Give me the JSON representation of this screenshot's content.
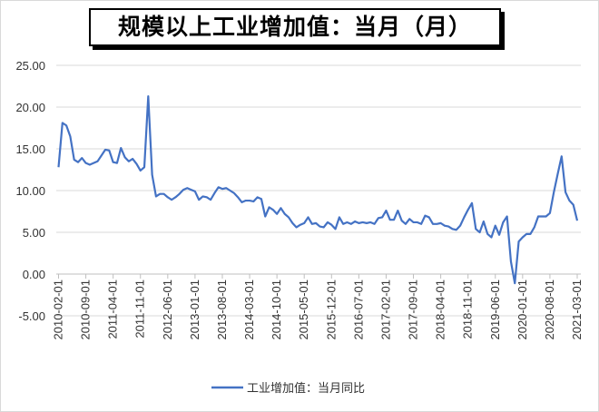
{
  "chart_data": {
    "type": "line",
    "title": "规模以上工业增加值：当月（月）",
    "xlabel": "",
    "ylabel": "",
    "ylim": [
      -5,
      25
    ],
    "y_ticks": [
      "25.00",
      "20.00",
      "15.00",
      "10.00",
      "5.00",
      "0.00",
      "-5.00"
    ],
    "x_ticks": [
      "2010-02-01",
      "2010-09-01",
      "2011-04-01",
      "2011-11-01",
      "2012-06-01",
      "2013-01-01",
      "2013-08-01",
      "2014-03-01",
      "2014-10-01",
      "2015-05-01",
      "2015-12-01",
      "2016-07-01",
      "2017-02-01",
      "2017-09-01",
      "2018-04-01",
      "2018-11-01",
      "2019-06-01",
      "2020-01-01",
      "2020-08-01",
      "2021-03-01"
    ],
    "grid": "horizontal",
    "legend_position": "bottom",
    "color": "#4472C4",
    "series": [
      {
        "name": "工业增加值：当月同比",
        "start": "2010-02",
        "frequency": "monthly",
        "values": [
          12.8,
          18.1,
          17.8,
          16.5,
          13.7,
          13.4,
          13.9,
          13.3,
          13.1,
          13.3,
          13.5,
          14.2,
          14.9,
          14.8,
          13.4,
          13.3,
          15.1,
          14.0,
          13.5,
          13.8,
          13.2,
          12.4,
          12.8,
          21.3,
          11.9,
          9.3,
          9.6,
          9.6,
          9.2,
          8.9,
          9.2,
          9.6,
          10.1,
          10.3,
          10.1,
          9.9,
          8.9,
          9.3,
          9.2,
          8.9,
          9.7,
          10.4,
          10.2,
          10.3,
          10.0,
          9.7,
          9.2,
          8.6,
          8.8,
          8.8,
          8.7,
          9.2,
          9.0,
          6.9,
          8.0,
          7.7,
          7.2,
          7.9,
          7.2,
          6.8,
          6.1,
          5.6,
          5.9,
          6.1,
          6.8,
          6.0,
          6.1,
          5.7,
          5.6,
          6.2,
          5.9,
          5.4,
          6.8,
          6.0,
          6.2,
          6.0,
          6.3,
          6.1,
          6.2,
          6.1,
          6.2,
          6.0,
          6.7,
          6.8,
          7.6,
          6.5,
          6.5,
          7.6,
          6.4,
          6.0,
          6.6,
          6.2,
          6.2,
          6.0,
          7.0,
          6.8,
          6.0,
          6.0,
          6.1,
          5.8,
          5.7,
          5.4,
          5.3,
          5.8,
          6.8,
          7.7,
          8.5,
          5.4,
          5.0,
          6.3,
          4.8,
          4.4,
          5.8,
          4.7,
          6.2,
          6.9,
          1.5,
          -1.1,
          3.9,
          4.4,
          4.8,
          4.8,
          5.6,
          6.9,
          6.9,
          6.9,
          7.3,
          9.8,
          12.0,
          14.1,
          9.8,
          8.8,
          8.3,
          6.4
        ]
      }
    ]
  }
}
